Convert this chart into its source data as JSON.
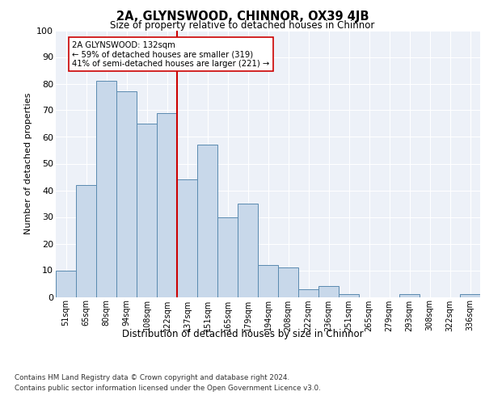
{
  "title1": "2A, GLYNSWOOD, CHINNOR, OX39 4JB",
  "title2": "Size of property relative to detached houses in Chinnor",
  "xlabel": "Distribution of detached houses by size in Chinnor",
  "ylabel": "Number of detached properties",
  "footnote1": "Contains HM Land Registry data © Crown copyright and database right 2024.",
  "footnote2": "Contains public sector information licensed under the Open Government Licence v3.0.",
  "annotation_line1": "2A GLYNSWOOD: 132sqm",
  "annotation_line2": "← 59% of detached houses are smaller (319)",
  "annotation_line3": "41% of semi-detached houses are larger (221) →",
  "bar_categories": [
    "51sqm",
    "65sqm",
    "80sqm",
    "94sqm",
    "108sqm",
    "122sqm",
    "137sqm",
    "151sqm",
    "165sqm",
    "179sqm",
    "194sqm",
    "208sqm",
    "222sqm",
    "236sqm",
    "251sqm",
    "265sqm",
    "279sqm",
    "293sqm",
    "308sqm",
    "322sqm",
    "336sqm"
  ],
  "bar_values": [
    10,
    42,
    81,
    77,
    65,
    69,
    44,
    57,
    30,
    35,
    12,
    11,
    3,
    4,
    1,
    0,
    0,
    1,
    0,
    0,
    1
  ],
  "bar_color": "#c8d8ea",
  "bar_edge_color": "#5a8ab0",
  "vline_color": "#cc0000",
  "background_color": "#edf1f8",
  "ylim": [
    0,
    100
  ],
  "yticks": [
    0,
    10,
    20,
    30,
    40,
    50,
    60,
    70,
    80,
    90,
    100
  ],
  "vline_index": 6
}
